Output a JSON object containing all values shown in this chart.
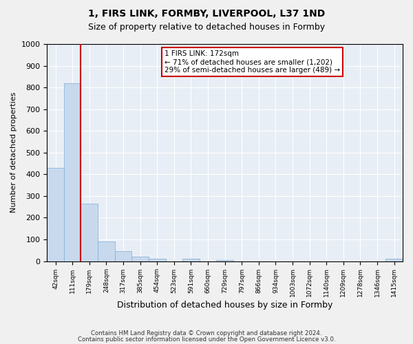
{
  "title1": "1, FIRS LINK, FORMBY, LIVERPOOL, L37 1ND",
  "title2": "Size of property relative to detached houses in Formby",
  "xlabel": "Distribution of detached houses by size in Formby",
  "ylabel": "Number of detached properties",
  "bar_color": "#c8d9ed",
  "bar_edge_color": "#7aadd4",
  "background_color": "#e8eef5",
  "fig_background": "#f0f0f0",
  "bin_labels": [
    "42sqm",
    "111sqm",
    "179sqm",
    "248sqm",
    "317sqm",
    "385sqm",
    "454sqm",
    "523sqm",
    "591sqm",
    "660sqm",
    "729sqm",
    "797sqm",
    "866sqm",
    "934sqm",
    "1003sqm",
    "1072sqm",
    "1140sqm",
    "1209sqm",
    "1278sqm",
    "1346sqm",
    "1415sqm"
  ],
  "values": [
    430,
    820,
    265,
    90,
    45,
    20,
    10,
    0,
    10,
    0,
    5,
    0,
    0,
    0,
    0,
    0,
    0,
    0,
    0,
    0,
    10
  ],
  "ylim": [
    0,
    1000
  ],
  "yticks": [
    0,
    100,
    200,
    300,
    400,
    500,
    600,
    700,
    800,
    900,
    1000
  ],
  "annotation_line1": "1 FIRS LINK: 172sqm",
  "annotation_line2": "← 71% of detached houses are smaller (1,202)",
  "annotation_line3": "29% of semi-detached houses are larger (489) →",
  "annotation_box_color": "#ffffff",
  "annotation_box_edge": "#cc0000",
  "red_line_color": "#cc0000",
  "red_line_x": 1.48,
  "footer1": "Contains HM Land Registry data © Crown copyright and database right 2024.",
  "footer2": "Contains public sector information licensed under the Open Government Licence v3.0."
}
